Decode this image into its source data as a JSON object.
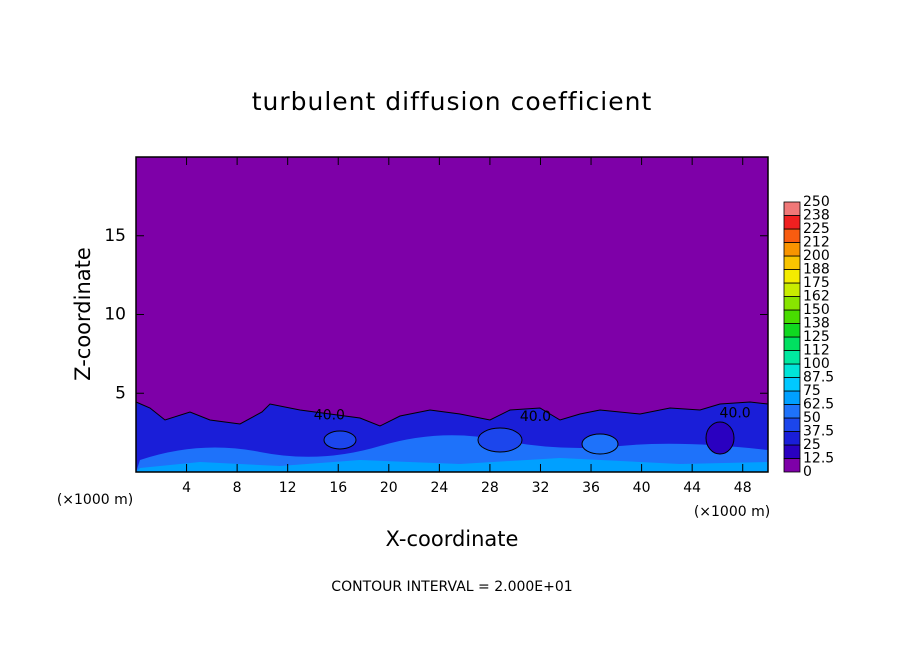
{
  "chart_data": {
    "type": "contour",
    "title": "turbulent diffusion coefficient",
    "x_label": "X-coordinate",
    "y_label": "Z-coordinate",
    "x_unit": "(×1000 m)",
    "footer": "CONTOUR INTERVAL = 2.000E+01",
    "xlim": [
      0,
      50
    ],
    "xticks": [
      4,
      8,
      12,
      16,
      20,
      24,
      28,
      32,
      36,
      40,
      44,
      48
    ],
    "ylim": [
      0,
      20
    ],
    "yticks": [
      5,
      10,
      15
    ],
    "contour_labels": [
      {
        "x": 15.3,
        "z": 3.6,
        "label": "40.0"
      },
      {
        "x": 31.6,
        "z": 3.5,
        "label": "40.0"
      },
      {
        "x": 47.4,
        "z": 3.7,
        "label": "40.0"
      }
    ],
    "colorbar": {
      "levels": [
        0,
        12.5,
        25,
        37.5,
        50,
        62.5,
        75,
        87.5,
        100,
        {
          "value": 112.5,
          "label": "112"
        },
        125,
        {
          "value": 137.5,
          "label": "138"
        },
        150,
        {
          "value": 162.5,
          "label": "162"
        },
        175,
        {
          "value": 187.5,
          "label": "188"
        },
        200,
        {
          "value": 212.5,
          "label": "212"
        },
        225,
        {
          "value": 237.5,
          "label": "238"
        },
        250
      ],
      "colors": [
        "#7e00a8",
        "#2a00c0",
        "#1a1ed8",
        "#1c46ec",
        "#1e72fa",
        "#00a0ff",
        "#00c8ff",
        "#00e4d8",
        "#00e8a0",
        "#00e060",
        "#10d820",
        "#48dc00",
        "#88e400",
        "#c8ec00",
        "#f4ec00",
        "#f8c400",
        "#f89400",
        "#f85c10",
        "#f02020",
        "#f07878"
      ]
    }
  }
}
